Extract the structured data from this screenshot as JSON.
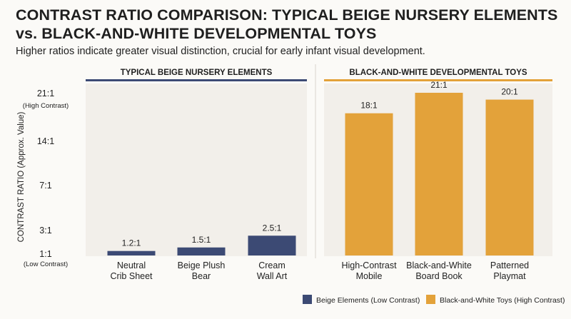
{
  "title": "CONTRAST RATIO COMPARISON: TYPICAL BEIGE NURSERY ELEMENTS vs. BLACK-AND-WHITE DEVELOPMENTAL TOYS",
  "subtitle": "Higher ratios indicate greater visual distinction, crucial for early infant visual development.",
  "colors": {
    "beige_series": "#3c4a74",
    "bw_series": "#e3a23a",
    "panel": "#f2efea"
  },
  "chart_data": {
    "type": "bar",
    "ylabel": "CONTRAST RATIO (Approx. Value)",
    "ylim": [
      1,
      21
    ],
    "y_ticks": [
      {
        "value": 21,
        "label": "21:1",
        "sublabel": "(High Contrast)"
      },
      {
        "value": 14,
        "label": "14:1",
        "sublabel": ""
      },
      {
        "value": 7,
        "label": "7:1",
        "sublabel": ""
      },
      {
        "value": 3,
        "label": "3:1",
        "sublabel": ""
      },
      {
        "value": 1,
        "label": "1:1",
        "sublabel": "(Low Contrast)"
      }
    ],
    "groups": [
      {
        "header": "TYPICAL BEIGE NURSERY ELEMENTS",
        "color": "#3c4a74",
        "bars": [
          {
            "category": [
              "Neutral",
              "Crib Sheet"
            ],
            "value": 1.2,
            "label": "1.2:1"
          },
          {
            "category": [
              "Beige Plush",
              "Bear"
            ],
            "value": 1.5,
            "label": "1.5:1"
          },
          {
            "category": [
              "Cream",
              "Wall Art"
            ],
            "value": 2.5,
            "label": "2.5:1"
          }
        ]
      },
      {
        "header": "BLACK-AND-WHITE DEVELOPMENTAL TOYS",
        "color": "#e3a23a",
        "bars": [
          {
            "category": [
              "High-Contrast",
              "Mobile"
            ],
            "value": 18,
            "label": "18:1"
          },
          {
            "category": [
              "Black-and-White",
              "Board Book"
            ],
            "value": 21,
            "label": "21:1"
          },
          {
            "category": [
              "Patterned",
              "Playmat"
            ],
            "value": 20,
            "label": "20:1"
          }
        ]
      }
    ],
    "legend": [
      {
        "label": "Beige Elements (Low Contrast)",
        "color": "#3c4a74"
      },
      {
        "label": "Black-and-White Toys (High Contrast)",
        "color": "#e3a23a"
      }
    ],
    "legend_position": "bottom-right"
  }
}
